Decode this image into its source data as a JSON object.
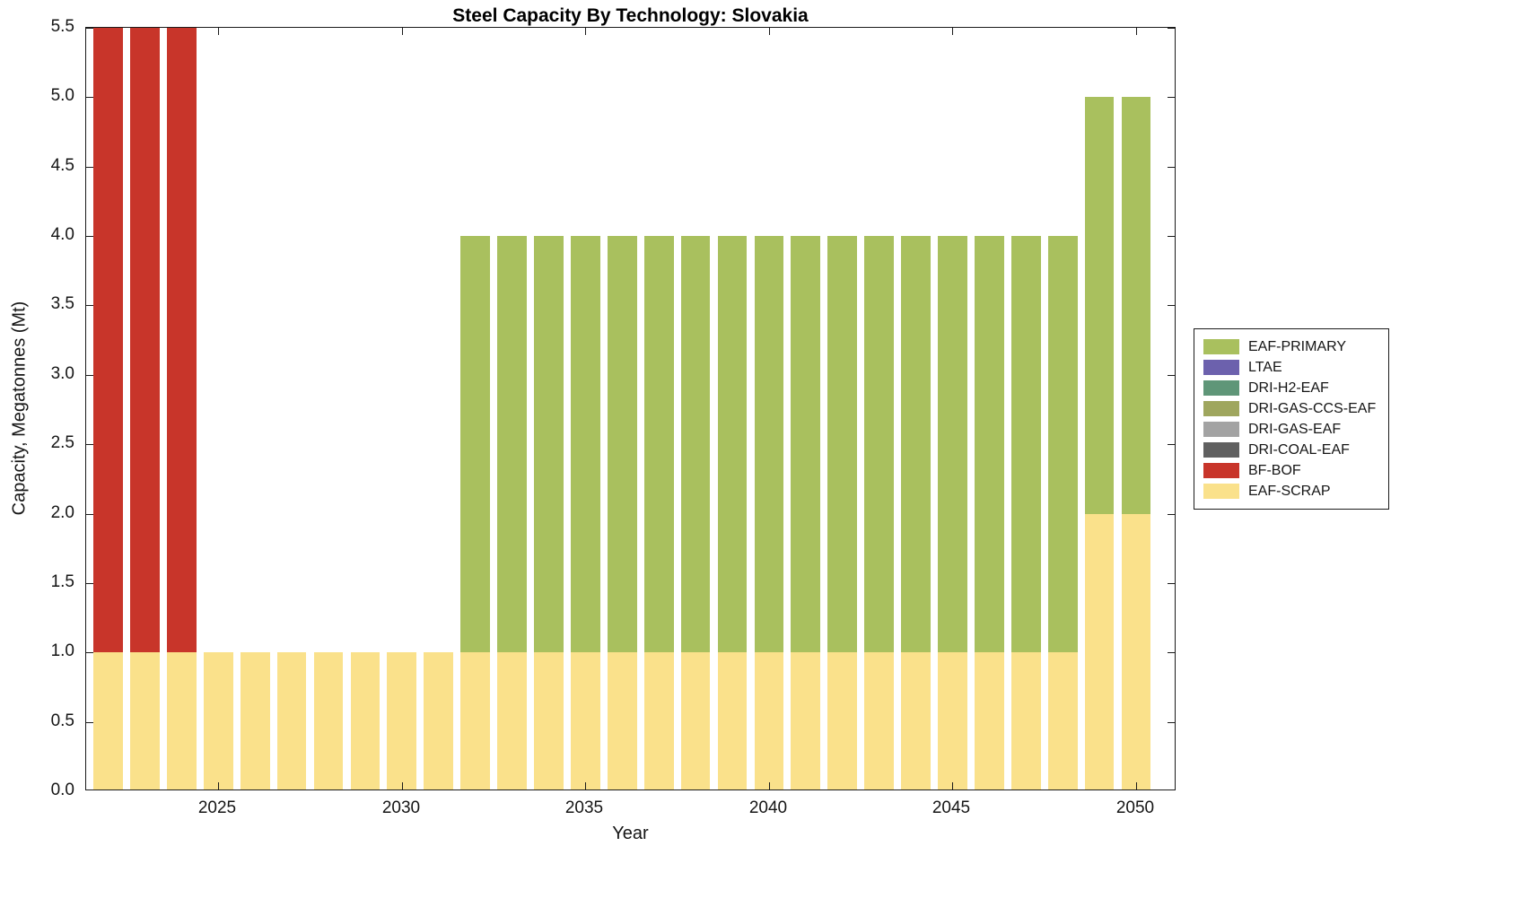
{
  "chart_data": {
    "type": "bar",
    "stacked": true,
    "title": "Steel Capacity By Technology: Slovakia",
    "xlabel": "Year",
    "ylabel": "Capacity, Megatonnes (Mt)",
    "xlim": [
      2021.4,
      2051.1
    ],
    "ylim": [
      0,
      5.5
    ],
    "ytick_step": 0.5,
    "xticks": [
      2025,
      2030,
      2035,
      2040,
      2045,
      2050
    ],
    "bar_width_years": 0.8,
    "grid": false,
    "years": [
      2022,
      2023,
      2024,
      2025,
      2026,
      2027,
      2028,
      2029,
      2030,
      2031,
      2032,
      2033,
      2034,
      2035,
      2036,
      2037,
      2038,
      2039,
      2040,
      2041,
      2042,
      2043,
      2044,
      2045,
      2046,
      2047,
      2048,
      2049,
      2050
    ],
    "series": [
      {
        "name": "EAF-SCRAP",
        "color": "#fae18b",
        "values": [
          1,
          1,
          1,
          1,
          1,
          1,
          1,
          1,
          1,
          1,
          1,
          1,
          1,
          1,
          1,
          1,
          1,
          1,
          1,
          1,
          1,
          1,
          1,
          1,
          1,
          1,
          1,
          2,
          2
        ]
      },
      {
        "name": "BF-BOF",
        "color": "#c8352a",
        "values": [
          4.5,
          4.5,
          4.5,
          0,
          0,
          0,
          0,
          0,
          0,
          0,
          0,
          0,
          0,
          0,
          0,
          0,
          0,
          0,
          0,
          0,
          0,
          0,
          0,
          0,
          0,
          0,
          0,
          0,
          0
        ]
      },
      {
        "name": "DRI-COAL-EAF",
        "color": "#606060",
        "values": [
          0,
          0,
          0,
          0,
          0,
          0,
          0,
          0,
          0,
          0,
          0,
          0,
          0,
          0,
          0,
          0,
          0,
          0,
          0,
          0,
          0,
          0,
          0,
          0,
          0,
          0,
          0,
          0,
          0
        ]
      },
      {
        "name": "DRI-GAS-EAF",
        "color": "#a3a3a3",
        "values": [
          0,
          0,
          0,
          0,
          0,
          0,
          0,
          0,
          0,
          0,
          0,
          0,
          0,
          0,
          0,
          0,
          0,
          0,
          0,
          0,
          0,
          0,
          0,
          0,
          0,
          0,
          0,
          0,
          0
        ]
      },
      {
        "name": "DRI-GAS-CCS-EAF",
        "color": "#9fa65e",
        "values": [
          0,
          0,
          0,
          0,
          0,
          0,
          0,
          0,
          0,
          0,
          0,
          0,
          0,
          0,
          0,
          0,
          0,
          0,
          0,
          0,
          0,
          0,
          0,
          0,
          0,
          0,
          0,
          0,
          0
        ]
      },
      {
        "name": "DRI-H2-EAF",
        "color": "#5f9678",
        "values": [
          0,
          0,
          0,
          0,
          0,
          0,
          0,
          0,
          0,
          0,
          0,
          0,
          0,
          0,
          0,
          0,
          0,
          0,
          0,
          0,
          0,
          0,
          0,
          0,
          0,
          0,
          0,
          0,
          0
        ]
      },
      {
        "name": "LTAE",
        "color": "#6c61ad",
        "values": [
          0,
          0,
          0,
          0,
          0,
          0,
          0,
          0,
          0,
          0,
          0,
          0,
          0,
          0,
          0,
          0,
          0,
          0,
          0,
          0,
          0,
          0,
          0,
          0,
          0,
          0,
          0,
          0,
          0
        ]
      },
      {
        "name": "EAF-PRIMARY",
        "color": "#a9c05e",
        "values": [
          0,
          0,
          0,
          0,
          0,
          0,
          0,
          0,
          0,
          0,
          3,
          3,
          3,
          3,
          3,
          3,
          3,
          3,
          3,
          3,
          3,
          3,
          3,
          3,
          3,
          3,
          3,
          3,
          3
        ]
      }
    ],
    "legend": {
      "position": "right",
      "order": [
        "EAF-PRIMARY",
        "LTAE",
        "DRI-H2-EAF",
        "DRI-GAS-CCS-EAF",
        "DRI-GAS-EAF",
        "DRI-COAL-EAF",
        "BF-BOF",
        "EAF-SCRAP"
      ]
    }
  }
}
